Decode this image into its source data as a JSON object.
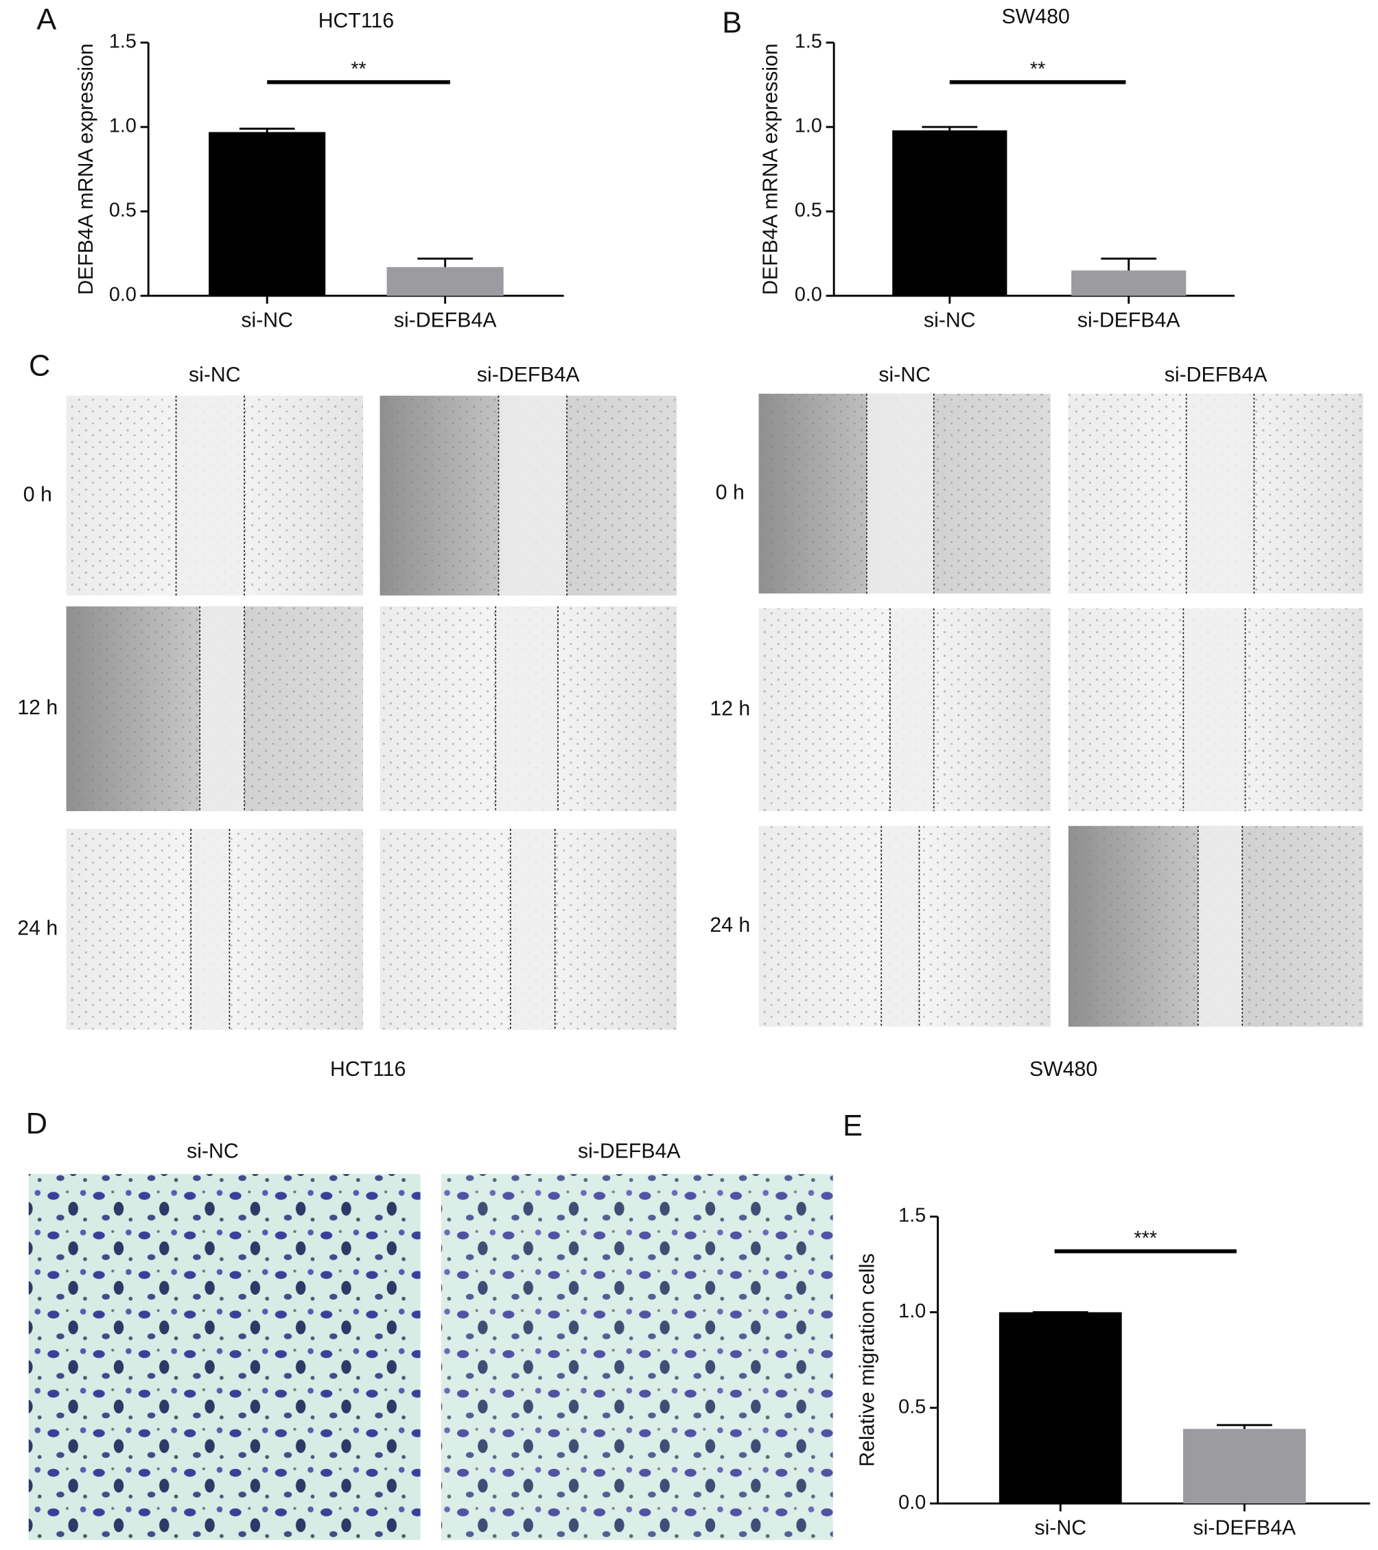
{
  "chart_data": [
    {
      "type": "bar",
      "title": "HCT116",
      "y_label": "DEFB4A mRNA expression",
      "categories": [
        "si-NC",
        "si-DEFB4A"
      ],
      "values": [
        0.97,
        0.17
      ],
      "errors": [
        0.02,
        0.05
      ],
      "colors": [
        "#000000",
        "#9b9ba0"
      ],
      "annotation": "**",
      "ylim": [
        0,
        1.5
      ],
      "yticks": [
        {
          "value": 0,
          "label": "0.0"
        },
        0.5,
        {
          "value": 1,
          "label": "1.0"
        },
        1.5
      ]
    },
    {
      "type": "bar",
      "title": "SW480",
      "y_label": "DEFB4A mRNA expression",
      "categories": [
        "si-NC",
        "si-DEFB4A"
      ],
      "values": [
        0.98,
        0.15
      ],
      "errors": [
        0.02,
        0.07
      ],
      "colors": [
        "#000000",
        "#9b9ba0"
      ],
      "annotation": "**",
      "ylim": [
        0,
        1.5
      ],
      "yticks": [
        {
          "value": 0,
          "label": "0.0"
        },
        0.5,
        {
          "value": 1,
          "label": "1.0"
        },
        1.5
      ]
    },
    {
      "type": "bar",
      "y_label": "Relative migration cells",
      "categories": [
        "si-NC",
        "si-DEFB4A"
      ],
      "values": [
        1.0,
        0.39
      ],
      "errors": [
        0,
        0.02
      ],
      "colors": [
        "#000000",
        "#9b9ba0"
      ],
      "annotation": "***",
      "ylim": [
        0,
        1.5
      ],
      "yticks": [
        {
          "value": 0,
          "label": "0.0"
        },
        0.5,
        {
          "value": 1,
          "label": "1.0"
        },
        1.5
      ]
    }
  ],
  "panel_labels": [
    "A",
    "B",
    "C",
    "D",
    "E"
  ],
  "wound_healing": {
    "columns": [
      "si-NC",
      "si-DEFB4A"
    ],
    "rows": [
      "0 h",
      "12 h",
      "24 h"
    ],
    "cell_lines": [
      "HCT116",
      "SW480"
    ]
  },
  "transwell": {
    "columns": [
      "si-NC",
      "si-DEFB4A"
    ]
  }
}
